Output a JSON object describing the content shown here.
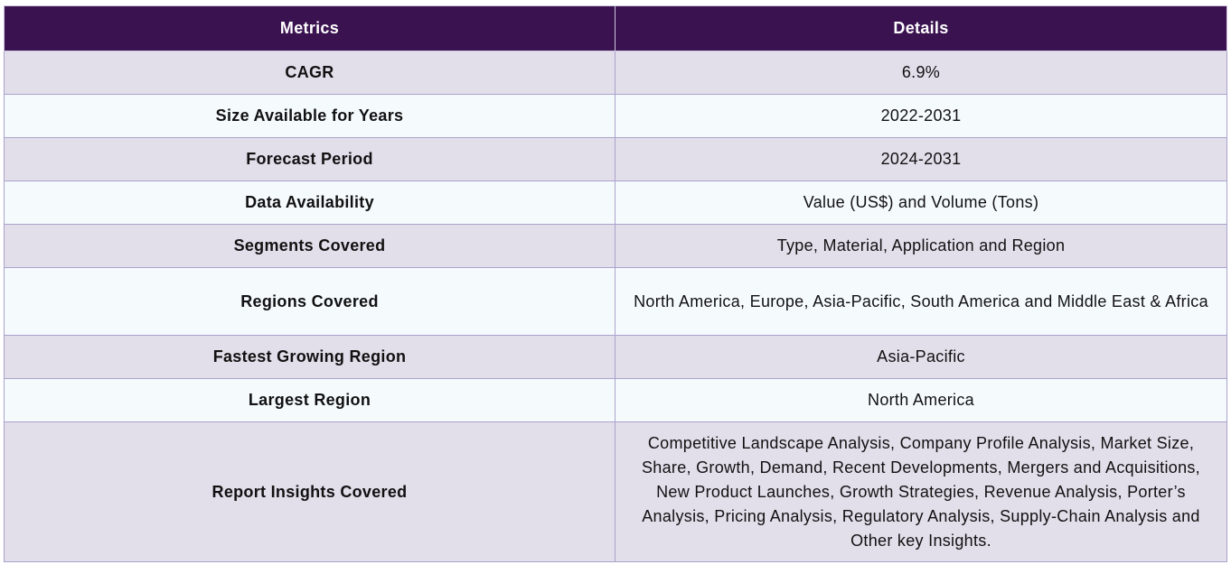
{
  "table": {
    "headers": [
      "Metrics",
      "Details"
    ],
    "rows": [
      {
        "metric": "CAGR",
        "details": "6.9%"
      },
      {
        "metric": "Size Available for Years",
        "details": "2022-2031"
      },
      {
        "metric": "Forecast Period",
        "details": "2024-2031"
      },
      {
        "metric": "Data Availability",
        "details": "Value (US$) and Volume (Tons)"
      },
      {
        "metric": "Segments Covered",
        "details": "Type, Material, Application and Region"
      },
      {
        "metric": "Regions Covered",
        "details": "North America, Europe, Asia-Pacific, South America and Middle East & Africa"
      },
      {
        "metric": "Fastest Growing Region",
        "details": "Asia-Pacific"
      },
      {
        "metric": "Largest Region",
        "details": "North America"
      },
      {
        "metric": "Report Insights Covered",
        "details": "Competitive Landscape Analysis, Company Profile Analysis, Market Size, Share, Growth, Demand, Recent Developments, Mergers and Acquisitions, New Product Launches, Growth Strategies, Revenue Analysis, Porter’s Analysis, Pricing Analysis, Regulatory Analysis, Supply-Chain Analysis and Other key Insights."
      }
    ]
  },
  "colors": {
    "header_bg": "#3a1250",
    "odd_row_bg": "#e2deea",
    "even_row_bg": "#f5fafd",
    "border": "#aaa3cc"
  }
}
